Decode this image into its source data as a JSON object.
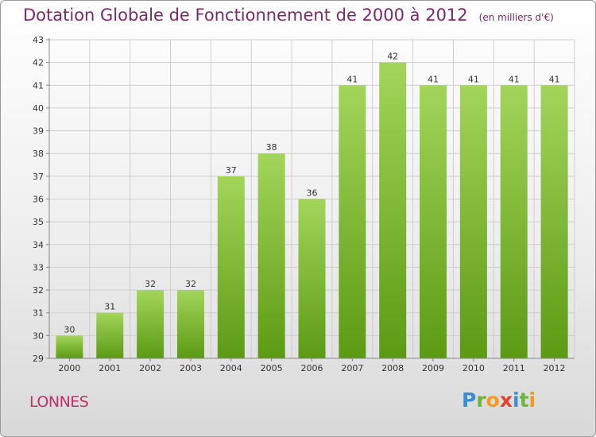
{
  "header": {
    "title": "Dotation Globale de Fonctionnement de 2000 à 2012",
    "unit": "(en milliers d'€)"
  },
  "footer": {
    "place": "LONNES",
    "logo": "Proxiti"
  },
  "colors": {
    "bar_light": "#a3d55a",
    "bar_dark": "#5c9a14",
    "title": "#7a2a6a",
    "place": "#c0306a"
  },
  "chart_data": {
    "type": "bar",
    "title": "Dotation Globale de Fonctionnement de 2000 à 2012",
    "subtitle": "(en milliers d'€)",
    "categories": [
      "2000",
      "2001",
      "2002",
      "2003",
      "2004",
      "2005",
      "2006",
      "2007",
      "2008",
      "2009",
      "2010",
      "2011",
      "2012"
    ],
    "values": [
      30,
      31,
      32,
      32,
      37,
      38,
      36,
      41,
      42,
      41,
      41,
      41,
      41
    ],
    "ylim": [
      29,
      43
    ],
    "yticks": [
      29,
      30,
      31,
      32,
      33,
      34,
      35,
      36,
      37,
      38,
      39,
      40,
      41,
      42,
      43
    ],
    "grid": true,
    "data_labels": true
  }
}
